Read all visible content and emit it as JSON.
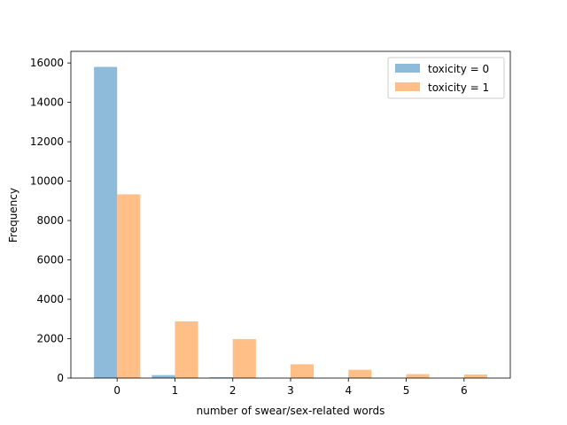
{
  "chart_data": {
    "type": "bar",
    "categories": [
      "0",
      "1",
      "2",
      "3",
      "4",
      "5",
      "6"
    ],
    "x": [
      0,
      1,
      2,
      3,
      4,
      5,
      6
    ],
    "series": [
      {
        "name": "toxicity = 0",
        "color": "#8fbbda",
        "values": [
          15800,
          150,
          40,
          0,
          0,
          0,
          0
        ]
      },
      {
        "name": "toxicity = 1",
        "color": "#ffbf86",
        "values": [
          9330,
          2880,
          1980,
          700,
          420,
          200,
          180
        ]
      }
    ],
    "title": "",
    "xlabel": "number of swear/sex-related words",
    "ylabel": "Frequency",
    "xlim": [
      -0.8,
      6.8
    ],
    "ylim": [
      0,
      16590
    ],
    "yticks": [
      0,
      2000,
      4000,
      6000,
      8000,
      10000,
      12000,
      14000,
      16000
    ],
    "grid": false,
    "legend": "upper right"
  }
}
